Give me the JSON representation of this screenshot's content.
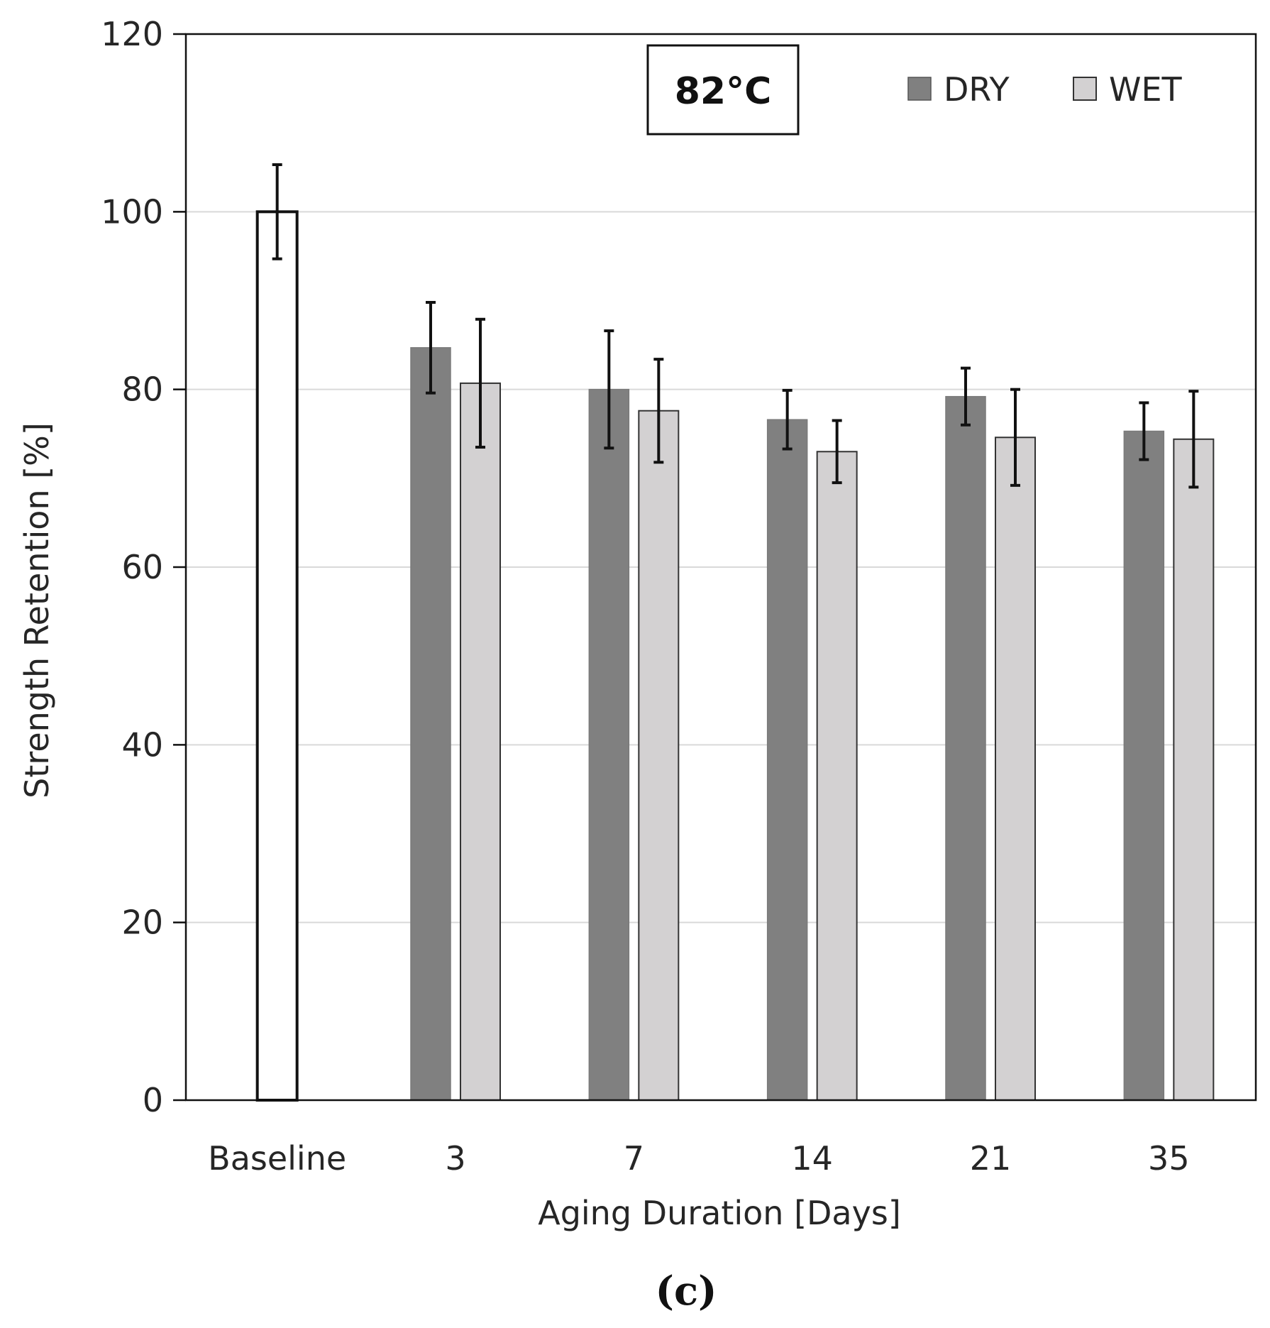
{
  "chart_data": {
    "type": "bar",
    "title": "",
    "annotation": "82°C",
    "panel_label": "(c)",
    "xlabel": "Aging Duration [Days]",
    "ylabel": "Strength Retention [%]",
    "ylim": [
      0,
      120
    ],
    "yticks": [
      "0",
      "20",
      "40",
      "60",
      "80",
      "100",
      "120"
    ],
    "grid": true,
    "legend_position": "top-right",
    "categories": [
      "Baseline",
      "3",
      "7",
      "14",
      "21",
      "35"
    ],
    "baseline": {
      "name": "Baseline",
      "value": 100,
      "error": 5.3,
      "color": "#ffffff"
    },
    "series": [
      {
        "name": "DRY",
        "color": "#808080",
        "values": [
          null,
          84.7,
          80.0,
          76.6,
          79.2,
          75.3
        ],
        "errors": [
          null,
          5.1,
          6.6,
          3.3,
          3.2,
          3.2
        ]
      },
      {
        "name": "WET",
        "color": "#d3d1d2",
        "values": [
          null,
          80.7,
          77.6,
          73.0,
          74.6,
          74.4
        ],
        "errors": [
          null,
          7.2,
          5.8,
          3.5,
          5.4,
          5.4
        ]
      }
    ]
  }
}
